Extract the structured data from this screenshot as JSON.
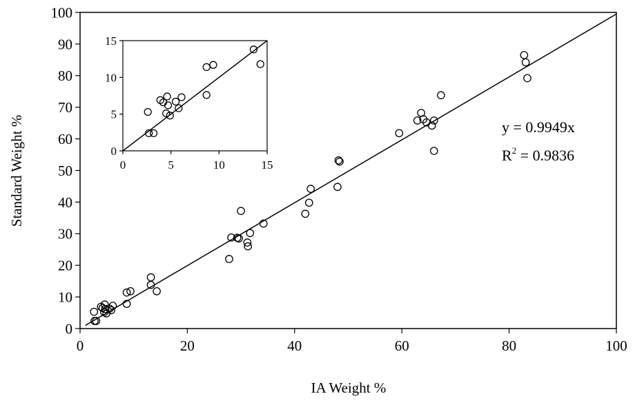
{
  "chart_data": [
    {
      "type": "scatter",
      "xlabel": "IA Weight %",
      "ylabel": "Standard Weight %",
      "xlim": [
        0,
        100
      ],
      "ylim": [
        0,
        100
      ],
      "xticks": [
        "0",
        "20",
        "40",
        "60",
        "80",
        "100"
      ],
      "yticks": [
        "0",
        "10",
        "20",
        "30",
        "40",
        "50",
        "60",
        "70",
        "80",
        "90",
        "100"
      ],
      "grid": false,
      "marker": "open-circle",
      "trendline": {
        "slope": 0.9949,
        "intercept": 0
      },
      "annotation": {
        "equation": "y = 0.9949x",
        "r2_prefix": "R",
        "r2_sup": "2",
        "r2_value": " = 0.9836"
      },
      "points": [
        [
          2.6,
          5.3
        ],
        [
          2.7,
          2.4
        ],
        [
          3.0,
          2.4
        ],
        [
          3.9,
          6.9
        ],
        [
          4.2,
          6.5
        ],
        [
          4.5,
          5.2
        ],
        [
          4.6,
          7.6
        ],
        [
          4.7,
          6.2
        ],
        [
          4.9,
          4.8
        ],
        [
          5.5,
          6.3
        ],
        [
          5.8,
          5.8
        ],
        [
          6.1,
          7.2
        ],
        [
          8.7,
          11.4
        ],
        [
          8.7,
          7.8
        ],
        [
          9.4,
          11.8
        ],
        [
          13.2,
          16.2
        ],
        [
          13.2,
          13.8
        ],
        [
          14.3,
          11.8
        ],
        [
          27.8,
          22.0
        ],
        [
          28.2,
          28.8
        ],
        [
          29.3,
          28.7
        ],
        [
          29.6,
          28.5
        ],
        [
          30.0,
          37.2
        ],
        [
          31.2,
          27.2
        ],
        [
          31.3,
          26.0
        ],
        [
          31.7,
          30.2
        ],
        [
          34.2,
          33.2
        ],
        [
          42.0,
          36.3
        ],
        [
          42.7,
          39.8
        ],
        [
          43.0,
          44.2
        ],
        [
          48.0,
          44.8
        ],
        [
          48.2,
          53.2
        ],
        [
          48.4,
          52.8
        ],
        [
          59.5,
          61.8
        ],
        [
          62.9,
          65.8
        ],
        [
          63.6,
          68.2
        ],
        [
          64.0,
          66.2
        ],
        [
          64.6,
          65.2
        ],
        [
          65.6,
          64.2
        ],
        [
          66.0,
          56.2
        ],
        [
          66.0,
          65.8
        ],
        [
          67.3,
          73.8
        ],
        [
          82.8,
          86.5
        ],
        [
          83.1,
          84.2
        ],
        [
          83.4,
          79.2
        ]
      ]
    },
    {
      "type": "scatter",
      "role": "inset",
      "xlim": [
        0,
        15
      ],
      "ylim": [
        0,
        15
      ],
      "xticks": [
        "0",
        "5",
        "10",
        "15"
      ],
      "yticks": [
        "0",
        "5",
        "10",
        "15"
      ],
      "grid": false,
      "marker": "open-circle",
      "trendline": {
        "slope": 1.0,
        "intercept": 0
      },
      "points": [
        [
          2.6,
          5.3
        ],
        [
          2.7,
          2.4
        ],
        [
          3.2,
          2.4
        ],
        [
          3.9,
          6.9
        ],
        [
          4.2,
          6.6
        ],
        [
          4.5,
          5.1
        ],
        [
          4.6,
          7.4
        ],
        [
          4.7,
          6.2
        ],
        [
          4.9,
          4.8
        ],
        [
          5.5,
          6.7
        ],
        [
          5.8,
          5.8
        ],
        [
          6.1,
          7.3
        ],
        [
          8.7,
          11.4
        ],
        [
          8.7,
          7.6
        ],
        [
          9.4,
          11.7
        ],
        [
          13.6,
          13.8
        ],
        [
          14.3,
          11.8
        ]
      ]
    }
  ]
}
